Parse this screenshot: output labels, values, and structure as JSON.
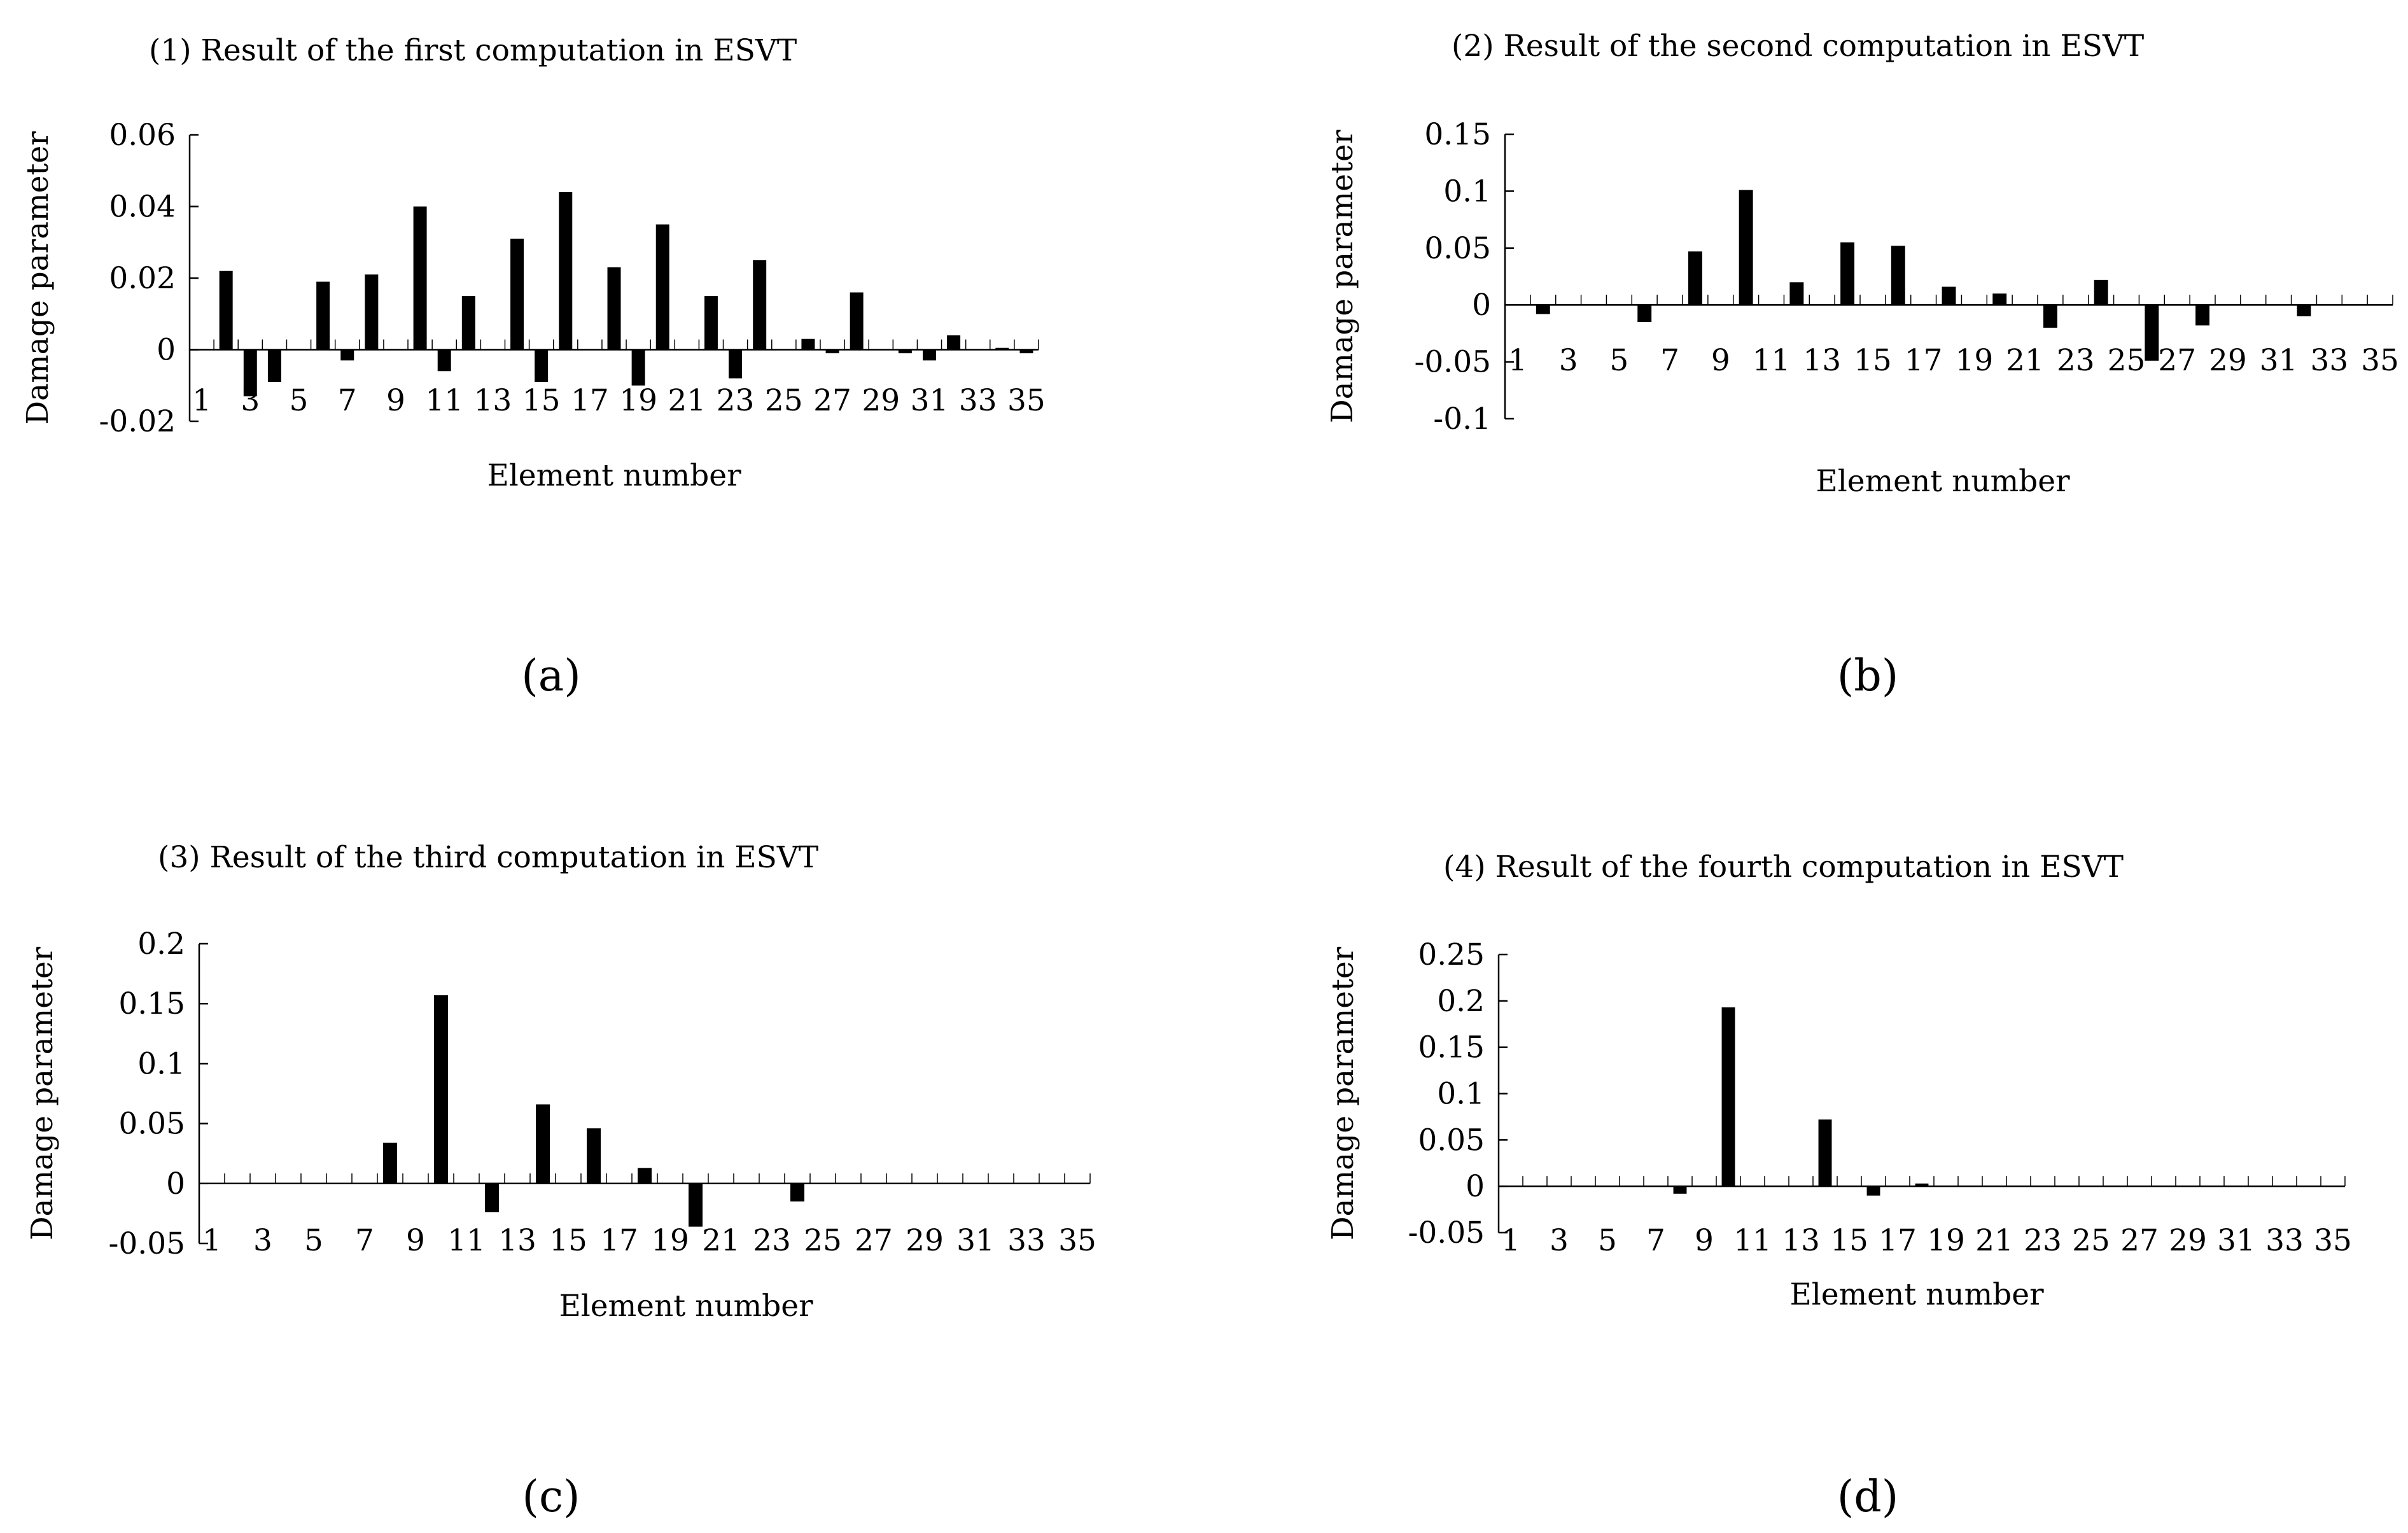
{
  "figure": {
    "panel_labels": [
      "(a)",
      "(b)",
      "(c)",
      "(d)"
    ]
  },
  "chart_data": [
    {
      "type": "bar",
      "title": "(1) Result of the first computation in ESVT",
      "xlabel": "Element number",
      "ylabel": "Damage parameter",
      "ylim": [
        -0.02,
        0.06
      ],
      "yticks": [
        -0.02,
        0,
        0.02,
        0.04,
        0.06
      ],
      "ytick_labels": [
        "-0.02",
        "0",
        "0.02",
        "0.04",
        "0.06"
      ],
      "xtick_labels": [
        "1",
        "3",
        "5",
        "7",
        "9",
        "11",
        "13",
        "15",
        "17",
        "19",
        "21",
        "23",
        "25",
        "27",
        "29",
        "31",
        "33",
        "35"
      ],
      "x": [
        1,
        2,
        3,
        4,
        5,
        6,
        7,
        8,
        9,
        10,
        11,
        12,
        13,
        14,
        15,
        16,
        17,
        18,
        19,
        20,
        21,
        22,
        23,
        24,
        25,
        26,
        27,
        28,
        29,
        30,
        31,
        32,
        33,
        34,
        35
      ],
      "values": [
        0,
        0.022,
        -0.013,
        -0.009,
        0,
        0.019,
        -0.003,
        0.021,
        0,
        0.04,
        -0.006,
        0.015,
        0,
        0.031,
        -0.009,
        0.044,
        0,
        0.023,
        -0.01,
        0.035,
        0,
        0.015,
        -0.008,
        0.025,
        0,
        0.003,
        -0.001,
        0.016,
        0,
        -0.001,
        -0.003,
        0.004,
        0,
        0.0005,
        -0.001
      ]
    },
    {
      "type": "bar",
      "title": "(2) Result of the second computation in ESVT",
      "xlabel": "Element number",
      "ylabel": "Damage parameter",
      "ylim": [
        -0.1,
        0.15
      ],
      "yticks": [
        -0.1,
        -0.05,
        0,
        0.05,
        0.1,
        0.15
      ],
      "ytick_labels": [
        "-0.1",
        "-0.05",
        "0",
        "0.05",
        "0.1",
        "0.15"
      ],
      "xtick_labels": [
        "1",
        "3",
        "5",
        "7",
        "9",
        "11",
        "13",
        "15",
        "17",
        "19",
        "21",
        "23",
        "25",
        "27",
        "29",
        "31",
        "33",
        "35"
      ],
      "x": [
        1,
        2,
        3,
        4,
        5,
        6,
        7,
        8,
        9,
        10,
        11,
        12,
        13,
        14,
        15,
        16,
        17,
        18,
        19,
        20,
        21,
        22,
        23,
        24,
        25,
        26,
        27,
        28,
        29,
        30,
        31,
        32,
        33,
        34,
        35
      ],
      "values": [
        0,
        -0.008,
        0,
        0,
        0,
        -0.015,
        0,
        0.047,
        0,
        0.101,
        0,
        0.02,
        0,
        0.055,
        0,
        0.052,
        0,
        0.016,
        0,
        0.01,
        0,
        -0.02,
        0,
        0.022,
        0,
        -0.049,
        0,
        -0.018,
        0,
        0,
        0,
        -0.01,
        0,
        0,
        0
      ]
    },
    {
      "type": "bar",
      "title": "(3) Result of the third computation in ESVT",
      "xlabel": "Element number",
      "ylabel": "Damage parameter",
      "ylim": [
        -0.05,
        0.2
      ],
      "yticks": [
        -0.05,
        0,
        0.05,
        0.1,
        0.15,
        0.2
      ],
      "ytick_labels": [
        "-0.05",
        "0",
        "0.05",
        "0.1",
        "0.15",
        "0.2"
      ],
      "xtick_labels": [
        "1",
        "3",
        "5",
        "7",
        "9",
        "11",
        "13",
        "15",
        "17",
        "19",
        "21",
        "23",
        "25",
        "27",
        "29",
        "31",
        "33",
        "35"
      ],
      "x": [
        1,
        2,
        3,
        4,
        5,
        6,
        7,
        8,
        9,
        10,
        11,
        12,
        13,
        14,
        15,
        16,
        17,
        18,
        19,
        20,
        21,
        22,
        23,
        24,
        25,
        26,
        27,
        28,
        29,
        30,
        31,
        32,
        33,
        34,
        35
      ],
      "values": [
        0,
        0,
        0,
        0,
        0,
        0,
        0,
        0.034,
        0,
        0.157,
        0,
        -0.024,
        0,
        0.066,
        0,
        0.046,
        0,
        0.013,
        0,
        -0.036,
        0,
        0,
        0,
        -0.015,
        0,
        0,
        0,
        0,
        0,
        0,
        0,
        0,
        0,
        0,
        0
      ]
    },
    {
      "type": "bar",
      "title": "(4) Result of the fourth computation in ESVT",
      "xlabel": "Element number",
      "ylabel": "Damage parameter",
      "ylim": [
        -0.05,
        0.25
      ],
      "yticks": [
        -0.05,
        0,
        0.05,
        0.1,
        0.15,
        0.2,
        0.25
      ],
      "ytick_labels": [
        "-0.05",
        "0",
        "0.05",
        "0.1",
        "0.15",
        "0.2",
        "0.25"
      ],
      "xtick_labels": [
        "1",
        "3",
        "5",
        "7",
        "9",
        "11",
        "13",
        "15",
        "17",
        "19",
        "21",
        "23",
        "25",
        "27",
        "29",
        "31",
        "33",
        "35"
      ],
      "x": [
        1,
        2,
        3,
        4,
        5,
        6,
        7,
        8,
        9,
        10,
        11,
        12,
        13,
        14,
        15,
        16,
        17,
        18,
        19,
        20,
        21,
        22,
        23,
        24,
        25,
        26,
        27,
        28,
        29,
        30,
        31,
        32,
        33,
        34,
        35
      ],
      "values": [
        0,
        0,
        0,
        0,
        0,
        0,
        0,
        -0.008,
        0,
        0.193,
        0,
        0,
        0,
        0.072,
        0,
        -0.01,
        0,
        0.003,
        0,
        0,
        0,
        0,
        0,
        0,
        0,
        0,
        0,
        0,
        0,
        0,
        0,
        0,
        0,
        0,
        0
      ]
    }
  ]
}
